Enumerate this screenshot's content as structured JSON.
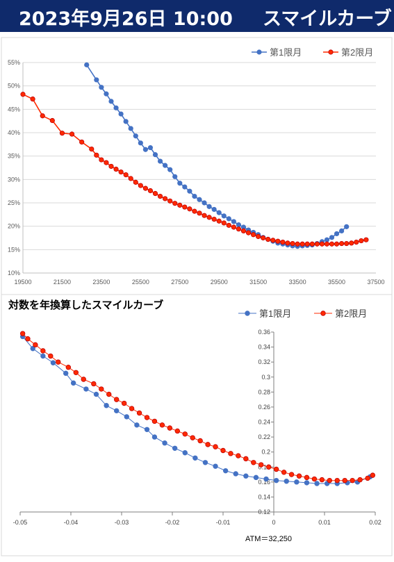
{
  "header": {
    "date": "2023年9月26日 10:00",
    "title": "スマイルカーブ"
  },
  "chart_data": [
    {
      "type": "line",
      "title": "",
      "xlabel": "",
      "ylabel": "",
      "xlim": [
        19500,
        37500
      ],
      "ylim": [
        0.1,
        0.55
      ],
      "xticks": [
        19500,
        21500,
        23500,
        25500,
        27500,
        29500,
        31500,
        33500,
        35500,
        37500
      ],
      "xtick_labels": [
        "19500",
        "21500",
        "23500",
        "25500",
        "27500",
        "29500",
        "31500",
        "33500",
        "35500",
        "37500"
      ],
      "yticks": [
        0.1,
        0.15,
        0.2,
        0.25,
        0.3,
        0.35,
        0.4,
        0.45,
        0.5,
        0.55
      ],
      "ytick_labels": [
        "10%",
        "15%",
        "20%",
        "25%",
        "30%",
        "35%",
        "40%",
        "45%",
        "50%",
        "55%"
      ],
      "grid": "horizontal",
      "legend": "top-right",
      "series": [
        {
          "name": "第1限月",
          "color": "#4472c4",
          "x": [
            22750,
            23250,
            23500,
            23750,
            24000,
            24250,
            24500,
            24750,
            25000,
            25250,
            25500,
            25750,
            26000,
            26250,
            26500,
            26750,
            27000,
            27250,
            27500,
            27750,
            28000,
            28250,
            28500,
            28750,
            29000,
            29250,
            29500,
            29750,
            30000,
            30250,
            30500,
            30750,
            31000,
            31250,
            31500,
            31750,
            32000,
            32250,
            32500,
            32750,
            33000,
            33250,
            33500,
            33750,
            34000,
            34250,
            34500,
            34750,
            35000,
            35250,
            35500,
            35750,
            36000
          ],
          "y": [
            0.545,
            0.513,
            0.497,
            0.483,
            0.467,
            0.453,
            0.44,
            0.424,
            0.409,
            0.393,
            0.378,
            0.364,
            0.368,
            0.353,
            0.339,
            0.33,
            0.321,
            0.306,
            0.292,
            0.284,
            0.275,
            0.264,
            0.257,
            0.25,
            0.242,
            0.236,
            0.229,
            0.222,
            0.216,
            0.21,
            0.203,
            0.198,
            0.192,
            0.187,
            0.182,
            0.176,
            0.172,
            0.168,
            0.164,
            0.162,
            0.16,
            0.158,
            0.157,
            0.158,
            0.159,
            0.16,
            0.163,
            0.167,
            0.171,
            0.176,
            0.184,
            0.19,
            0.199
          ]
        },
        {
          "name": "第2限月",
          "color": "#ff2a00",
          "x": [
            19500,
            20000,
            20500,
            21000,
            21500,
            22000,
            22500,
            23000,
            23250,
            23500,
            23750,
            24000,
            24250,
            24500,
            24750,
            25000,
            25250,
            25500,
            25750,
            26000,
            26250,
            26500,
            26750,
            27000,
            27250,
            27500,
            27750,
            28000,
            28250,
            28500,
            28750,
            29000,
            29250,
            29500,
            29750,
            30000,
            30250,
            30500,
            30750,
            31000,
            31250,
            31500,
            31750,
            32000,
            32250,
            32500,
            32750,
            33000,
            33250,
            33500,
            33750,
            34000,
            34250,
            34500,
            34750,
            35000,
            35250,
            35500,
            35750,
            36000,
            36250,
            36500,
            36750,
            37000
          ],
          "y": [
            0.482,
            0.472,
            0.436,
            0.426,
            0.399,
            0.397,
            0.38,
            0.365,
            0.352,
            0.342,
            0.336,
            0.328,
            0.322,
            0.316,
            0.31,
            0.302,
            0.294,
            0.287,
            0.281,
            0.276,
            0.27,
            0.264,
            0.259,
            0.254,
            0.249,
            0.245,
            0.241,
            0.237,
            0.232,
            0.228,
            0.223,
            0.219,
            0.215,
            0.211,
            0.207,
            0.202,
            0.198,
            0.194,
            0.19,
            0.186,
            0.182,
            0.178,
            0.175,
            0.172,
            0.17,
            0.168,
            0.166,
            0.164,
            0.163,
            0.162,
            0.162,
            0.162,
            0.162,
            0.162,
            0.162,
            0.162,
            0.162,
            0.162,
            0.163,
            0.163,
            0.164,
            0.166,
            0.169,
            0.171
          ]
        }
      ]
    },
    {
      "type": "line",
      "title": "対数を年換算したスマイルカーブ",
      "xlabel": "",
      "ylabel": "",
      "xlim": [
        -0.05,
        0.02
      ],
      "ylim": [
        0.12,
        0.36
      ],
      "xticks": [
        -0.05,
        -0.04,
        -0.03,
        -0.02,
        -0.01,
        0,
        0.01,
        0.02
      ],
      "xtick_labels": [
        "-0.05",
        "-0.04",
        "-0.03",
        "-0.02",
        "-0.01",
        "0",
        "0.01",
        "0.02"
      ],
      "yticks": [
        0.12,
        0.14,
        0.16,
        0.18,
        0.2,
        0.22,
        0.24,
        0.26,
        0.28,
        0.3,
        0.32,
        0.34,
        0.36
      ],
      "ytick_labels": [
        "0.12",
        "0.14",
        "0.16",
        "0.18",
        "0.2",
        "0.22",
        "0.24",
        "0.26",
        "0.28",
        "0.3",
        "0.32",
        "0.34",
        "0.36"
      ],
      "grid": "none",
      "legend": "top-right",
      "annotation": "ATM＝32,250",
      "series": [
        {
          "name": "第1限月",
          "color": "#4472c4",
          "x": [
            -0.0495,
            -0.0475,
            -0.0455,
            -0.0435,
            -0.041,
            -0.0395,
            -0.037,
            -0.035,
            -0.033,
            -0.031,
            -0.029,
            -0.027,
            -0.025,
            -0.0235,
            -0.0215,
            -0.0195,
            -0.0175,
            -0.0155,
            -0.0135,
            -0.0115,
            -0.0095,
            -0.0075,
            -0.0055,
            -0.0035,
            -0.0015,
            0.0005,
            0.0025,
            0.0045,
            0.0065,
            0.0085,
            0.0105,
            0.0125,
            0.0145,
            0.0165,
            0.019
          ],
          "y": [
            0.354,
            0.338,
            0.328,
            0.319,
            0.305,
            0.292,
            0.284,
            0.277,
            0.262,
            0.255,
            0.247,
            0.236,
            0.23,
            0.22,
            0.212,
            0.205,
            0.199,
            0.192,
            0.186,
            0.181,
            0.175,
            0.171,
            0.168,
            0.166,
            0.164,
            0.162,
            0.161,
            0.16,
            0.159,
            0.158,
            0.158,
            0.158,
            0.159,
            0.16,
            0.167
          ]
        },
        {
          "name": "第2限月",
          "color": "#ff2a00",
          "x": [
            -0.0495,
            -0.0485,
            -0.047,
            -0.0455,
            -0.044,
            -0.0425,
            -0.0405,
            -0.039,
            -0.0375,
            -0.0355,
            -0.034,
            -0.0325,
            -0.031,
            -0.0295,
            -0.028,
            -0.0265,
            -0.025,
            -0.0235,
            -0.022,
            -0.0205,
            -0.019,
            -0.0175,
            -0.016,
            -0.0145,
            -0.013,
            -0.0115,
            -0.01,
            -0.0085,
            -0.007,
            -0.0055,
            -0.004,
            -0.0025,
            -0.001,
            0.0005,
            0.002,
            0.0035,
            0.005,
            0.0065,
            0.008,
            0.0095,
            0.011,
            0.0125,
            0.014,
            0.0155,
            0.017,
            0.0185,
            0.0195
          ],
          "y": [
            0.358,
            0.351,
            0.343,
            0.335,
            0.328,
            0.32,
            0.313,
            0.306,
            0.297,
            0.291,
            0.284,
            0.277,
            0.27,
            0.265,
            0.258,
            0.252,
            0.246,
            0.241,
            0.236,
            0.232,
            0.228,
            0.224,
            0.219,
            0.215,
            0.21,
            0.207,
            0.202,
            0.198,
            0.195,
            0.191,
            0.186,
            0.183,
            0.18,
            0.177,
            0.173,
            0.17,
            0.168,
            0.166,
            0.164,
            0.163,
            0.162,
            0.162,
            0.162,
            0.162,
            0.163,
            0.165,
            0.169
          ]
        }
      ]
    }
  ]
}
